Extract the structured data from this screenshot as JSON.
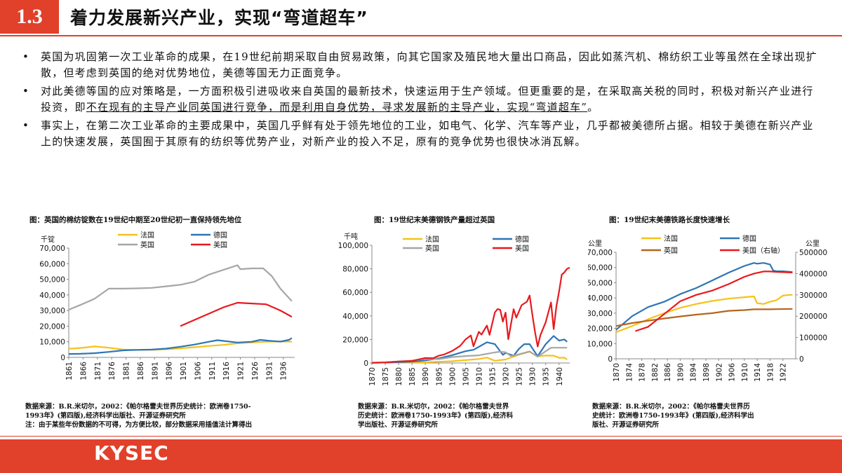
{
  "header": {
    "section": "1.3",
    "title": "着力发展新兴产业，实现“弯道超车”"
  },
  "bullets": [
    {
      "text": "英国为巩固第一次工业革命的成果，在19世纪前期采取自由贸易政策，向其它国家及殖民地大量出口商品，因此如蒸汽机、棉纺织工业等虽然在全球出现扩散，但考虑到英国的绝对优势地位，美德等国无力正面竞争。"
    },
    {
      "pre": "对此美德等国的应对策略是，一方面积极引进吸收来自英国的最新技术，快速运用于生产领域。但更重要的是，在采取高关税的同时，积极对新兴产业进行投资，即",
      "underlined": "不在现有的主导产业同英国进行竞争，而是利用自身优势，寻求发展新的主导产业，实现“弯道超车”",
      "post": "。"
    },
    {
      "text": "事实上，在第二次工业革命的主要成果中，英国几乎鲜有处于领先地位的工业，如电气、化学、汽车等产业，几乎都被美德所占据。相较于美德在新兴产业上的快速发展，英国囿于其原有的纺织等优势产业，对新产业的投入不足，原有的竞争优势也很快冰消瓦解。"
    }
  ],
  "captions": [
    {
      "title": "图：英国的棉纺锭数在19世纪中期至20世纪初一直保持领先地位",
      "source_l1": "数据来源：B.R.米切尔，2002：《帕尔格雷夫世界历史统计：欧洲卷1750-",
      "source_l2": "1993年》(第四版),经济科学出版社、开源证券研究所",
      "note": "注：由于某些年份数据的不可得，为方便比较，部分数据采用插值法计算得出"
    },
    {
      "title": "图：19世纪末美德钢铁产量超过英国",
      "source_l1": "数据来源：B.R.米切尔，2002：《帕尔格雷夫世界",
      "source_l2": "历史统计：欧洲卷1750-1993年》(第四版),经济科",
      "source_l3": "学出版社、开源证券研究所"
    },
    {
      "title": "图：19世纪末美德铁路长度快速增长",
      "source_l1": "数据来源：B.R.米切尔，2002：《帕尔格雷夫世界历",
      "source_l2": "史统计：欧洲卷1750-1993年》(第四版),经济科学出",
      "source_l3": "版社、开源证券研究所"
    }
  ],
  "colors": {
    "france": "#f5c218",
    "germany": "#2e75b6",
    "uk": "#a6a6a6",
    "usa": "#e8191e",
    "usa_right": "#e8191e",
    "uk_brown": "#b5651d",
    "accent": "#e1402a"
  },
  "footer": {
    "logo": "KYSEC"
  },
  "chart_data": [
    {
      "type": "line",
      "ylabel": "千锭",
      "ylim": [
        0,
        70000
      ],
      "yticks": [
        "0",
        "10,000",
        "20,000",
        "30,000",
        "40,000",
        "50,000",
        "60,000",
        "70,000"
      ],
      "xlim": [
        1861,
        1940
      ],
      "xticks": [
        "1861",
        "1866",
        "1871",
        "1876",
        "1881",
        "1886",
        "1891",
        "1896",
        "1901",
        "1906",
        "1911",
        "1916",
        "1921",
        "1926",
        "1931",
        "1936"
      ],
      "legend": {
        "placement": "top",
        "entries": [
          "法国",
          "德国",
          "英国",
          "美国"
        ]
      },
      "series": [
        {
          "name": "法国",
          "color": "#f5c218",
          "x": [
            1861,
            1865,
            1870,
            1875,
            1880,
            1885,
            1890,
            1895,
            1900,
            1905,
            1910,
            1915,
            1920,
            1925,
            1930,
            1935,
            1939
          ],
          "values": [
            5500,
            6000,
            7000,
            6200,
            5000,
            4800,
            4900,
            5200,
            5800,
            6500,
            7300,
            8000,
            9000,
            9600,
            10000,
            10200,
            10100
          ]
        },
        {
          "name": "德国",
          "color": "#2e75b6",
          "x": [
            1861,
            1865,
            1870,
            1875,
            1880,
            1885,
            1890,
            1895,
            1900,
            1905,
            1910,
            1913,
            1920,
            1925,
            1928,
            1930,
            1935,
            1938,
            1939
          ],
          "values": [
            2200,
            2300,
            2700,
            3500,
            4500,
            4800,
            5000,
            5600,
            6800,
            8200,
            10000,
            11000,
            9500,
            10000,
            11200,
            10800,
            10100,
            11200,
            12400
          ]
        },
        {
          "name": "英国",
          "color": "#a6a6a6",
          "x": [
            1861,
            1865,
            1870,
            1875,
            1880,
            1885,
            1890,
            1895,
            1900,
            1905,
            1910,
            1915,
            1920,
            1921,
            1925,
            1929,
            1932,
            1935,
            1939
          ],
          "values": [
            30500,
            33500,
            37500,
            44000,
            44000,
            44200,
            44500,
            45500,
            46500,
            48500,
            53000,
            56000,
            59000,
            56500,
            57000,
            57000,
            52000,
            44000,
            36000
          ]
        },
        {
          "name": "美国",
          "color": "#e8191e",
          "x": [
            1900,
            1905,
            1910,
            1915,
            1920,
            1925,
            1930,
            1935,
            1939
          ],
          "values": [
            20000,
            24000,
            28000,
            32000,
            35000,
            34500,
            34000,
            30000,
            26000
          ]
        }
      ]
    },
    {
      "type": "line",
      "ylabel": "千吨",
      "ylim": [
        0,
        100000
      ],
      "yticks": [
        "0",
        "20,000",
        "40,000",
        "60,000",
        "80,000",
        "100,000"
      ],
      "xlim": [
        1870,
        1944
      ],
      "xticks": [
        "1870",
        "1875",
        "1880",
        "1885",
        "1890",
        "1895",
        "1900",
        "1905",
        "1910",
        "1915",
        "1920",
        "1925",
        "1930",
        "1935",
        "1940"
      ],
      "legend": {
        "placement": "top",
        "entries": [
          "法国",
          "德国",
          "英国",
          "美国"
        ]
      },
      "series": [
        {
          "name": "法国",
          "color": "#f5c218",
          "x": [
            1870,
            1880,
            1890,
            1900,
            1910,
            1913,
            1916,
            1920,
            1925,
            1929,
            1932,
            1935,
            1938,
            1940,
            1942,
            1943
          ],
          "values": [
            300,
            400,
            600,
            1500,
            3400,
            4600,
            1900,
            3000,
            7000,
            9500,
            5600,
            6300,
            6200,
            4400,
            4500,
            3000
          ]
        },
        {
          "name": "德国",
          "color": "#2e75b6",
          "x": [
            1870,
            1875,
            1880,
            1885,
            1890,
            1895,
            1900,
            1905,
            1908,
            1910,
            1913,
            1916,
            1919,
            1920,
            1923,
            1925,
            1927,
            1929,
            1932,
            1935,
            1938,
            1940,
            1942,
            1943
          ],
          "values": [
            200,
            400,
            700,
            1200,
            2200,
            3900,
            6600,
            10000,
            11200,
            13700,
            17600,
            16000,
            6900,
            8500,
            6200,
            12000,
            16000,
            16000,
            5700,
            16000,
            23000,
            19000,
            20000,
            18000
          ]
        },
        {
          "name": "英国",
          "color": "#a6a6a6",
          "x": [
            1870,
            1875,
            1880,
            1885,
            1890,
            1895,
            1900,
            1905,
            1910,
            1913,
            1916,
            1918,
            1920,
            1922,
            1925,
            1929,
            1932,
            1935,
            1937,
            1940,
            1943
          ],
          "values": [
            300,
            700,
            1300,
            2000,
            3600,
            3300,
            5000,
            5900,
            6500,
            7800,
            9000,
            9600,
            9100,
            5900,
            7400,
            9800,
            5300,
            10000,
            13000,
            13000,
            13000
          ]
        },
        {
          "name": "美国",
          "color": "#e8191e",
          "x": [
            1870,
            1875,
            1880,
            1885,
            1890,
            1893,
            1895,
            1897,
            1900,
            1903,
            1905,
            1907,
            1908,
            1910,
            1911,
            1913,
            1914,
            1916,
            1917,
            1918,
            1919,
            1920,
            1921,
            1923,
            1924,
            1926,
            1928,
            1929,
            1930,
            1931,
            1932,
            1933,
            1935,
            1937,
            1938,
            1939,
            1940,
            1941,
            1942,
            1943,
            1944
          ],
          "values": [
            100,
            400,
            1300,
            1700,
            4300,
            4100,
            6200,
            7200,
            10200,
            14500,
            20000,
            23400,
            14200,
            26500,
            24100,
            31800,
            23900,
            43000,
            45800,
            45200,
            35100,
            42800,
            20100,
            45700,
            38500,
            49100,
            52100,
            57300,
            41400,
            26300,
            13900,
            23600,
            34600,
            51400,
            28800,
            47900,
            60800,
            75000,
            77000,
            80000,
            81000
          ]
        }
      ]
    },
    {
      "type": "line",
      "ylabel": "公里",
      "ylabel_right": "公里",
      "ylim": [
        0,
        70000
      ],
      "ylim_right": [
        0,
        500000
      ],
      "yticks": [
        "0",
        "10,000",
        "20,000",
        "30,000",
        "40,000",
        "50,000",
        "60,000",
        "70,000"
      ],
      "yticks_right": [
        "0",
        "100000",
        "200000",
        "300000",
        "400000",
        "500000"
      ],
      "xlim": [
        1870,
        1926
      ],
      "xticks": [
        "1870",
        "1874",
        "1878",
        "1882",
        "1886",
        "1890",
        "1894",
        "1898",
        "1902",
        "1906",
        "1910",
        "1914",
        "1918",
        "1922"
      ],
      "legend": {
        "placement": "top",
        "entries": [
          "法国",
          "德国",
          "英国",
          "美国（右轴）"
        ]
      },
      "series": [
        {
          "name": "法国",
          "color": "#f5c218",
          "axis": "left",
          "x": [
            1870,
            1875,
            1880,
            1885,
            1890,
            1895,
            1900,
            1905,
            1910,
            1913,
            1914,
            1916,
            1918,
            1920,
            1922,
            1924,
            1925
          ],
          "values": [
            17500,
            21500,
            26000,
            30000,
            33500,
            36000,
            38000,
            39500,
            40500,
            41000,
            36500,
            36000,
            37500,
            38500,
            41500,
            42000,
            42000
          ]
        },
        {
          "name": "德国",
          "color": "#2e75b6",
          "axis": "left",
          "x": [
            1870,
            1875,
            1880,
            1885,
            1890,
            1895,
            1900,
            1905,
            1910,
            1913,
            1914,
            1916,
            1918,
            1919,
            1920,
            1922,
            1925
          ],
          "values": [
            19000,
            28000,
            34000,
            37500,
            42500,
            46500,
            51500,
            56500,
            61000,
            63000,
            62500,
            63000,
            62000,
            58000,
            57500,
            57500,
            57000
          ]
        },
        {
          "name": "英国",
          "color": "#b5651d",
          "axis": "left",
          "x": [
            1870,
            1875,
            1880,
            1885,
            1890,
            1895,
            1900,
            1905,
            1910,
            1913,
            1918,
            1920,
            1925
          ],
          "values": [
            21500,
            23500,
            25000,
            26500,
            27800,
            29000,
            30000,
            31500,
            32000,
            32500,
            32500,
            32600,
            32800
          ]
        },
        {
          "name": "美国（右轴）",
          "color": "#e8191e",
          "axis": "right",
          "x": [
            1876,
            1880,
            1885,
            1890,
            1895,
            1900,
            1905,
            1910,
            1913,
            1916,
            1918,
            1920,
            1925
          ],
          "values": [
            130000,
            150000,
            210000,
            270000,
            300000,
            320000,
            350000,
            385000,
            400000,
            410000,
            410000,
            408000,
            405000
          ]
        }
      ]
    }
  ]
}
